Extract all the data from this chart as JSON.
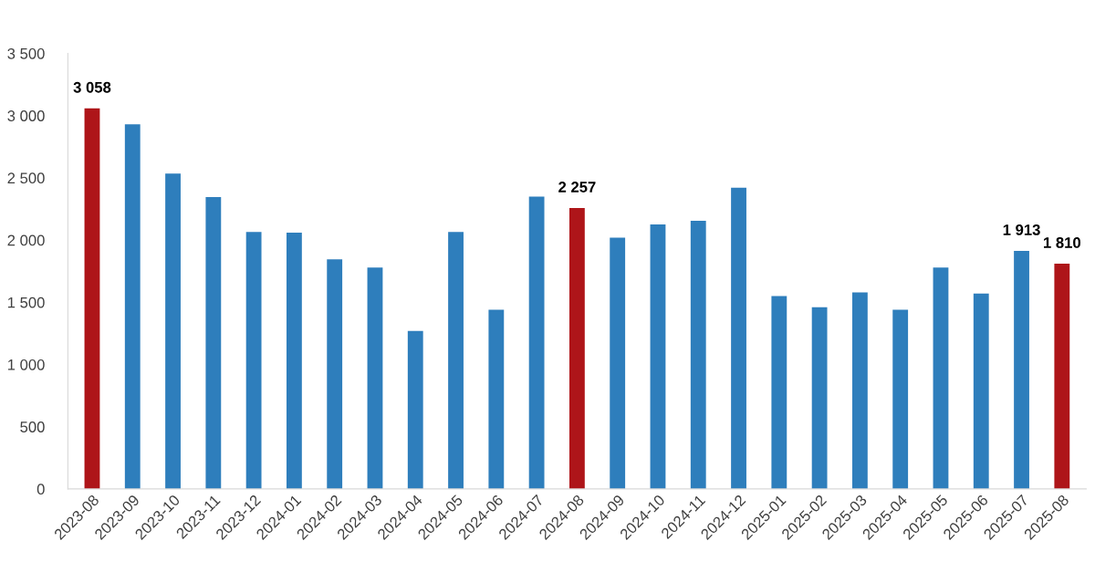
{
  "chart_data": {
    "type": "bar",
    "categories": [
      "2023-08",
      "2023-09",
      "2023-10",
      "2023-11",
      "2023-12",
      "2024-01",
      "2024-02",
      "2024-03",
      "2024-04",
      "2024-05",
      "2024-06",
      "2024-07",
      "2024-08",
      "2024-09",
      "2024-10",
      "2024-11",
      "2024-12",
      "2025-01",
      "2025-02",
      "2025-03",
      "2025-04",
      "2025-05",
      "2025-06",
      "2025-07",
      "2025-08"
    ],
    "values": [
      3058,
      2930,
      2535,
      2345,
      2065,
      2060,
      1845,
      1780,
      1270,
      2065,
      1440,
      2350,
      2257,
      2020,
      2125,
      2155,
      2420,
      1550,
      1460,
      1580,
      1440,
      1780,
      1570,
      1913,
      1810
    ],
    "colors": [
      "#ae1519",
      "#2e7ebc",
      "#2e7ebc",
      "#2e7ebc",
      "#2e7ebc",
      "#2e7ebc",
      "#2e7ebc",
      "#2e7ebc",
      "#2e7ebc",
      "#2e7ebc",
      "#2e7ebc",
      "#2e7ebc",
      "#ae1519",
      "#2e7ebc",
      "#2e7ebc",
      "#2e7ebc",
      "#2e7ebc",
      "#2e7ebc",
      "#2e7ebc",
      "#2e7ebc",
      "#2e7ebc",
      "#2e7ebc",
      "#2e7ebc",
      "#2e7ebc",
      "#ae1519"
    ],
    "value_labels": [
      "3 058",
      null,
      null,
      null,
      null,
      null,
      null,
      null,
      null,
      null,
      null,
      null,
      "2 257",
      null,
      null,
      null,
      null,
      null,
      null,
      null,
      null,
      null,
      null,
      "1 913",
      "1 810"
    ],
    "ylim": [
      0,
      3500
    ],
    "yticks": [
      0,
      500,
      {
        "value": 1000,
        "label": "1 000"
      },
      {
        "value": 1500,
        "label": "1 500"
      },
      {
        "value": 2000,
        "label": "2 000"
      },
      {
        "value": 2500,
        "label": "2 500"
      },
      {
        "value": 3000,
        "label": "3 000"
      },
      {
        "value": 3500,
        "label": "3 500"
      }
    ],
    "grid": false,
    "legend": false
  }
}
